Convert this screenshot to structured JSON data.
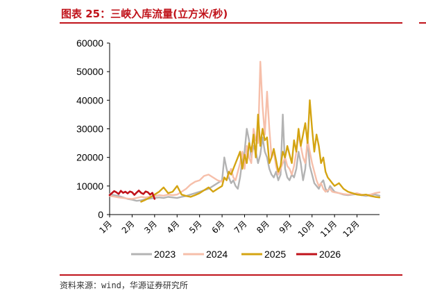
{
  "title": "图表 25：三峡入库流量(立方米/秒)",
  "source": "资料来源：wind，华源证券研究所",
  "chart_data": {
    "type": "line",
    "title": "图表 25：三峡入库流量(立方米/秒)",
    "xlabel": "",
    "ylabel": "",
    "ylim": [
      0,
      60000
    ],
    "yticks": [
      "0",
      "10000",
      "20000",
      "30000",
      "40000",
      "50000",
      "60000"
    ],
    "xticks": [
      "1月",
      "2月",
      "3月",
      "4月",
      "5月",
      "6月",
      "7月",
      "8月",
      "9月",
      "10月",
      "11月",
      "12月"
    ],
    "xlim": [
      1,
      13
    ],
    "grid": false,
    "legend_position": "bottom",
    "series": [
      {
        "name": "2023",
        "color": "#b3b3b3",
        "x": [
          1,
          1.2,
          1.4,
          1.6,
          1.8,
          2,
          2.2,
          2.4,
          2.6,
          2.8,
          3,
          3.2,
          3.4,
          3.6,
          3.8,
          4,
          4.2,
          4.4,
          4.6,
          4.8,
          5,
          5.2,
          5.4,
          5.6,
          5.8,
          6,
          6.1,
          6.2,
          6.3,
          6.4,
          6.5,
          6.6,
          6.7,
          6.8,
          6.9,
          7,
          7.1,
          7.2,
          7.3,
          7.4,
          7.5,
          7.6,
          7.7,
          7.8,
          7.9,
          8,
          8.1,
          8.2,
          8.3,
          8.4,
          8.5,
          8.6,
          8.7,
          8.8,
          8.9,
          9,
          9.1,
          9.2,
          9.3,
          9.4,
          9.5,
          9.6,
          9.7,
          9.8,
          9.9,
          10,
          10.1,
          10.2,
          10.3,
          10.4,
          10.5,
          10.6,
          10.7,
          10.8,
          10.9,
          11,
          11.2,
          11.4,
          11.6,
          11.8,
          12,
          12.2,
          12.4,
          12.6,
          12.8,
          13
        ],
        "values": [
          7200,
          6800,
          6500,
          6000,
          5500,
          5200,
          4800,
          5000,
          5400,
          5600,
          5800,
          6000,
          5800,
          6200,
          6000,
          5800,
          6200,
          6500,
          7000,
          7500,
          8000,
          8500,
          9000,
          10000,
          11000,
          12000,
          20000,
          16000,
          13000,
          11000,
          12000,
          10000,
          9000,
          13000,
          19000,
          22000,
          30000,
          26000,
          20000,
          24000,
          22000,
          18000,
          21000,
          27000,
          22000,
          20000,
          16000,
          14000,
          13000,
          15000,
          12000,
          14000,
          35000,
          16000,
          13000,
          12000,
          14000,
          13000,
          16000,
          22000,
          18000,
          12000,
          16000,
          26000,
          17000,
          14000,
          11000,
          10000,
          9000,
          11000,
          12000,
          9000,
          8000,
          10000,
          9000,
          8000,
          7500,
          7000,
          6800,
          7000,
          7200,
          6800,
          6500,
          6800,
          7000,
          6600
        ],
        "notes": ""
      },
      {
        "name": "2024",
        "color": "#f6bfaa",
        "x": [
          1,
          1.2,
          1.4,
          1.6,
          1.8,
          2,
          2.2,
          2.4,
          2.6,
          2.8,
          3,
          3.2,
          3.4,
          3.6,
          3.8,
          4,
          4.2,
          4.4,
          4.6,
          4.8,
          5,
          5.2,
          5.4,
          5.6,
          5.8,
          6,
          6.1,
          6.2,
          6.3,
          6.4,
          6.5,
          6.6,
          6.7,
          6.8,
          6.9,
          7,
          7.1,
          7.2,
          7.3,
          7.4,
          7.5,
          7.6,
          7.7,
          7.8,
          7.9,
          8,
          8.1,
          8.2,
          8.3,
          8.4,
          8.5,
          8.6,
          8.7,
          8.8,
          8.9,
          9,
          9.1,
          9.2,
          9.3,
          9.4,
          9.5,
          9.6,
          9.7,
          9.8,
          9.9,
          10,
          10.1,
          10.2,
          10.3,
          10.4,
          10.5,
          10.6,
          10.7,
          10.8,
          10.9,
          11,
          11.2,
          11.4,
          11.6,
          11.8,
          12,
          12.2,
          12.4,
          12.6,
          12.8,
          13
        ],
        "values": [
          6500,
          6300,
          6000,
          5800,
          5600,
          5500,
          5800,
          6200,
          6000,
          6300,
          6500,
          6800,
          6600,
          7000,
          6800,
          7000,
          8000,
          9000,
          10500,
          11500,
          12000,
          13500,
          14000,
          13000,
          12000,
          11500,
          13000,
          12000,
          14000,
          16000,
          13000,
          12000,
          15000,
          18000,
          22000,
          16000,
          24000,
          20000,
          18000,
          30000,
          26000,
          25000,
          53500,
          38000,
          28000,
          43000,
          30000,
          20000,
          22000,
          17000,
          14000,
          16000,
          18000,
          20000,
          17000,
          16000,
          14000,
          17000,
          22000,
          28000,
          24000,
          20000,
          18000,
          26000,
          22000,
          18000,
          15000,
          12000,
          10000,
          11000,
          9000,
          8000,
          8500,
          9000,
          8000,
          7800,
          7500,
          7200,
          7000,
          7200,
          7500,
          7000,
          6800,
          7000,
          7500,
          7800
        ],
        "notes": ""
      },
      {
        "name": "2025",
        "color": "#d4a412",
        "x": [
          2.4,
          2.6,
          2.8,
          3,
          3.2,
          3.4,
          3.6,
          3.8,
          4,
          4.2,
          4.4,
          4.6,
          4.8,
          5,
          5.2,
          5.4,
          5.6,
          5.8,
          6,
          6.1,
          6.2,
          6.3,
          6.4,
          6.5,
          6.6,
          6.7,
          6.8,
          6.9,
          7,
          7.1,
          7.2,
          7.3,
          7.4,
          7.5,
          7.6,
          7.7,
          7.8,
          7.9,
          8,
          8.1,
          8.2,
          8.3,
          8.4,
          8.5,
          8.6,
          8.7,
          8.8,
          8.9,
          9,
          9.1,
          9.2,
          9.3,
          9.4,
          9.5,
          9.6,
          9.7,
          9.8,
          9.9,
          10,
          10.1,
          10.2,
          10.3,
          10.4,
          10.5,
          10.6,
          10.7,
          10.8,
          10.9,
          11,
          11.2,
          11.4,
          11.6,
          11.8,
          12,
          12.2,
          12.4,
          12.6,
          12.8,
          13
        ],
        "values": [
          4500,
          5200,
          6000,
          7000,
          8000,
          9500,
          7500,
          8000,
          10000,
          7000,
          6500,
          6200,
          6800,
          7500,
          8500,
          9500,
          8000,
          9000,
          10000,
          13000,
          12000,
          15000,
          14000,
          16000,
          18000,
          20000,
          22000,
          16000,
          21000,
          18000,
          25000,
          22000,
          28000,
          20000,
          35000,
          24000,
          30000,
          26000,
          27000,
          18000,
          20000,
          23000,
          19000,
          15000,
          17000,
          22000,
          20000,
          24000,
          21000,
          18000,
          26000,
          22000,
          30000,
          24000,
          28000,
          32000,
          25000,
          40000,
          30000,
          22000,
          28000,
          24000,
          18000,
          20000,
          15000,
          13000,
          12000,
          11000,
          10000,
          11000,
          9000,
          8000,
          7500,
          7000,
          6800,
          7000,
          6500,
          6200,
          6000
        ],
        "notes": ""
      },
      {
        "name": "2026",
        "color": "#c0121a",
        "x": [
          1,
          1.1,
          1.2,
          1.3,
          1.4,
          1.5,
          1.6,
          1.7,
          1.8,
          1.9,
          2,
          2.1,
          2.2,
          2.3,
          2.4,
          2.5,
          2.6,
          2.7,
          2.8,
          2.9,
          3
        ],
        "values": [
          6800,
          7500,
          8200,
          7800,
          7200,
          8300,
          7600,
          8000,
          7400,
          8100,
          7800,
          6900,
          7700,
          8400,
          7600,
          7200,
          8100,
          7800,
          7000,
          7600,
          5500
        ],
        "notes": ""
      }
    ]
  }
}
